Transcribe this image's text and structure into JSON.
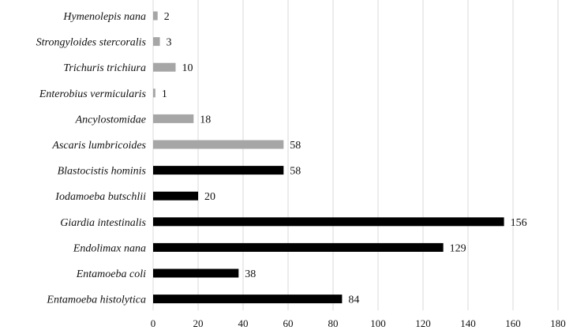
{
  "chart_data": {
    "type": "bar",
    "orientation": "horizontal",
    "categories": [
      "Hymenolepis nana",
      "Strongyloides stercoralis",
      "Trichuris trichiura",
      "Enterobius vermicularis",
      "Ancylostomidae",
      "Ascaris lumbricoides",
      "Blastocistis hominis",
      "Iodamoeba butschlii",
      "Giardia intestinalis",
      "Endolimax nana",
      "Entamoeba coli",
      "Entamoeba histolytica"
    ],
    "values": [
      2,
      3,
      10,
      1,
      18,
      58,
      58,
      20,
      156,
      129,
      38,
      84
    ],
    "bar_colors": [
      "#a6a6a6",
      "#a6a6a6",
      "#a6a6a6",
      "#a6a6a6",
      "#a6a6a6",
      "#a6a6a6",
      "#000000",
      "#000000",
      "#000000",
      "#000000",
      "#000000",
      "#000000"
    ],
    "xlim": [
      0,
      180
    ],
    "xticks": [
      0,
      20,
      40,
      60,
      80,
      100,
      120,
      140,
      160,
      180
    ],
    "grid": "vertical",
    "title": "",
    "xlabel": "",
    "ylabel": ""
  }
}
